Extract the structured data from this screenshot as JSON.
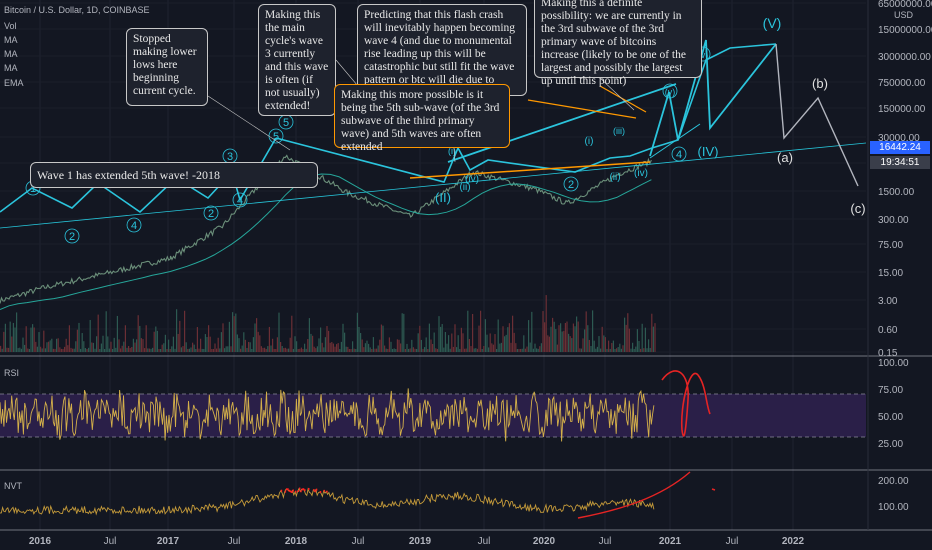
{
  "header": {
    "title": "Bitcoin / U.S. Dollar, 1D, COINBASE",
    "indicators": [
      "Vol",
      "MA",
      "MA",
      "MA",
      "EMA"
    ]
  },
  "price_axis": {
    "unit": "USD",
    "current_price": "16442.24",
    "countdown": "19:34:51",
    "colors": {
      "price_label": "#2962ff",
      "countdown_label": "#3a3e4a"
    }
  },
  "panes": {
    "rsi_label": "RSI",
    "nvt_label": "NVT"
  },
  "annotations": {
    "stopped": "Stopped making lower lows here beginning current cycle.",
    "wave3": "Making this the main cycle's wave 3 currently and this wave is often (if not usually) extended!",
    "flash_crash": "Predicting that this flash crash will inevitably happen becoming wave 4 (and due to monumental rise leading up this will be catastrophic but still fit the wave pattern or btc will die due to other coin becoming FED",
    "definite": "Making this a definite possibility: we are currently in the 3rd subwave of the 3rd primary wave of bitcoins increase (likely to be one of the largest and possibly the largest up until this point)",
    "fifth_sub": "Making this more possible is it being the 5th sub-wave (of the 3rd subwave of the third primary wave) and 5th waves are often extended",
    "wave1": "Wave 1 has extended 5th wave! -2018"
  },
  "wave_labels": {
    "w1": "1",
    "w2a": "2",
    "w3a": "3",
    "w4a": "4",
    "w5a": "5",
    "w5b": "5",
    "w2b": "2",
    "w4b": "4",
    "w2c": "2",
    "w4c": "4",
    "w1s": "(i)",
    "w3s": "(iii)",
    "w2s": "(ii)",
    "w4s": "(iv)",
    "w1t": "(i)",
    "w3t": "(iii)",
    "w2t": "(ii)",
    "w4t": "(iv)",
    "w5s": "(v)",
    "w5t": "(v)",
    "II": "(II)",
    "IV": "(IV)",
    "V": "(V)",
    "a": "(a)",
    "b": "(b)",
    "c": "(c)"
  },
  "chart_data": [
    {
      "type": "line",
      "name_in_chart": "price",
      "scale": "log",
      "y_ticks": [
        "65000000.00",
        "15000000.00",
        "3000000.00",
        "750000.00",
        "150000.00",
        "30000.00",
        "7500.00",
        "1500.00",
        "300.00",
        "75.00",
        "15.00",
        "3.00",
        "0.60",
        "0.15"
      ],
      "x_ticks": [
        "2016",
        "Jul",
        "2017",
        "Jul",
        "2018",
        "Jul",
        "2019",
        "Jul",
        "2020",
        "Jul",
        "2021",
        "Jul",
        "2022"
      ],
      "price_path": [
        {
          "x": "2015-06",
          "y": 230
        },
        {
          "x": "2016-01",
          "y": 430
        },
        {
          "x": "2016-07",
          "y": 650
        },
        {
          "x": "2017-01",
          "y": 1000
        },
        {
          "x": "2017-06",
          "y": 2500
        },
        {
          "x": "2017-12",
          "y": 19000
        },
        {
          "x": "2018-06",
          "y": 6500
        },
        {
          "x": "2018-12",
          "y": 3300
        },
        {
          "x": "2019-06",
          "y": 12000
        },
        {
          "x": "2019-12",
          "y": 7200
        },
        {
          "x": "2020-03",
          "y": 4800
        },
        {
          "x": "2020-08",
          "y": 11500
        },
        {
          "x": "2020-11",
          "y": 16442
        }
      ],
      "projection": [
        {
          "x": "2020-11",
          "y": 16442
        },
        {
          "x": "2021-02",
          "y": 150000
        },
        {
          "x": "2021-03",
          "y": 45000
        },
        {
          "x": "2021-05",
          "y": 450000
        },
        {
          "x": "2021-06",
          "y": 22000
        },
        {
          "x": "2021-11",
          "y": 15000000
        },
        {
          "x": "2022-01",
          "y": 40000
        },
        {
          "x": "2022-04",
          "y": 400000
        },
        {
          "x": "2022-08",
          "y": 5000
        }
      ],
      "colors": {
        "price": "#26c6da",
        "projection": "#2bc4dc",
        "abc": "#b2b5be",
        "orange_lines": "#ff9800",
        "ma": "#26a69a"
      }
    },
    {
      "type": "line",
      "name_in_chart": "RSI",
      "y_ticks": [
        "100.00",
        "75.00",
        "50.00",
        "25.00"
      ],
      "bands": [
        70,
        30
      ],
      "colors": {
        "line": "#d4b04a",
        "band_fill": "#2a1f48",
        "projection": "#e52424"
      }
    },
    {
      "type": "line",
      "name_in_chart": "NVT",
      "y_ticks": [
        "200.00",
        "100.00"
      ],
      "colors": {
        "line": "#c49a3a",
        "high": "#ff2020",
        "projection": "#e52424"
      }
    }
  ]
}
